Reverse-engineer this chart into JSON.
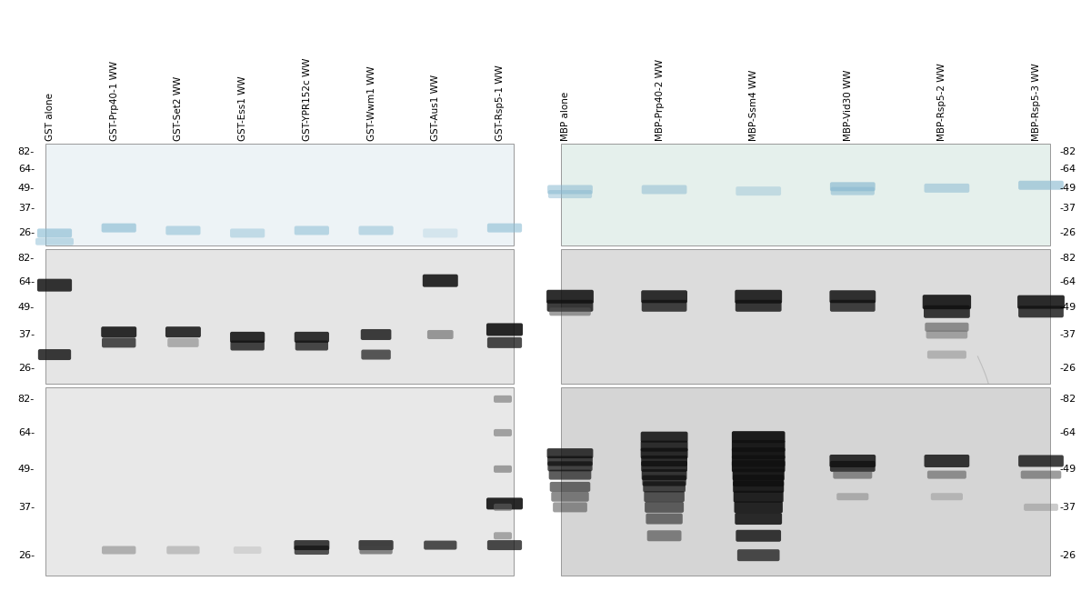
{
  "left_labels": [
    "GST alone",
    "GST-Prp40-1 WW",
    "GST-Set2 WW",
    "GST-Ess1 WW",
    "GST-YPR152c WW",
    "GST-Wwm1 WW",
    "GST-Aus1 WW",
    "GST-Rsp5-1 WW"
  ],
  "right_labels": [
    "MBP alone",
    "MBP-Prp40-2 WW",
    "MBP-Ssm4 WW",
    "MBP-Vid30 WW",
    "MBP-Rsp5-2 WW",
    "MBP-Rsp5-3 WW"
  ],
  "mw_left": [
    "82-",
    "64-",
    "49-",
    "37-",
    "26-"
  ],
  "mw_right": [
    "-82",
    "-64",
    "-49",
    "-37",
    "-26"
  ],
  "mw_vals": [
    82,
    64,
    49,
    37,
    26
  ],
  "gel1L_bg": "#edf3f6",
  "gel2L_bg": "#e5e5e5",
  "gel3L_bg": "#e8e8e8",
  "gel1R_bg": "#e5f0ec",
  "gel2R_bg": "#dcdcdc",
  "gel3R_bg": "#d5d5d5"
}
